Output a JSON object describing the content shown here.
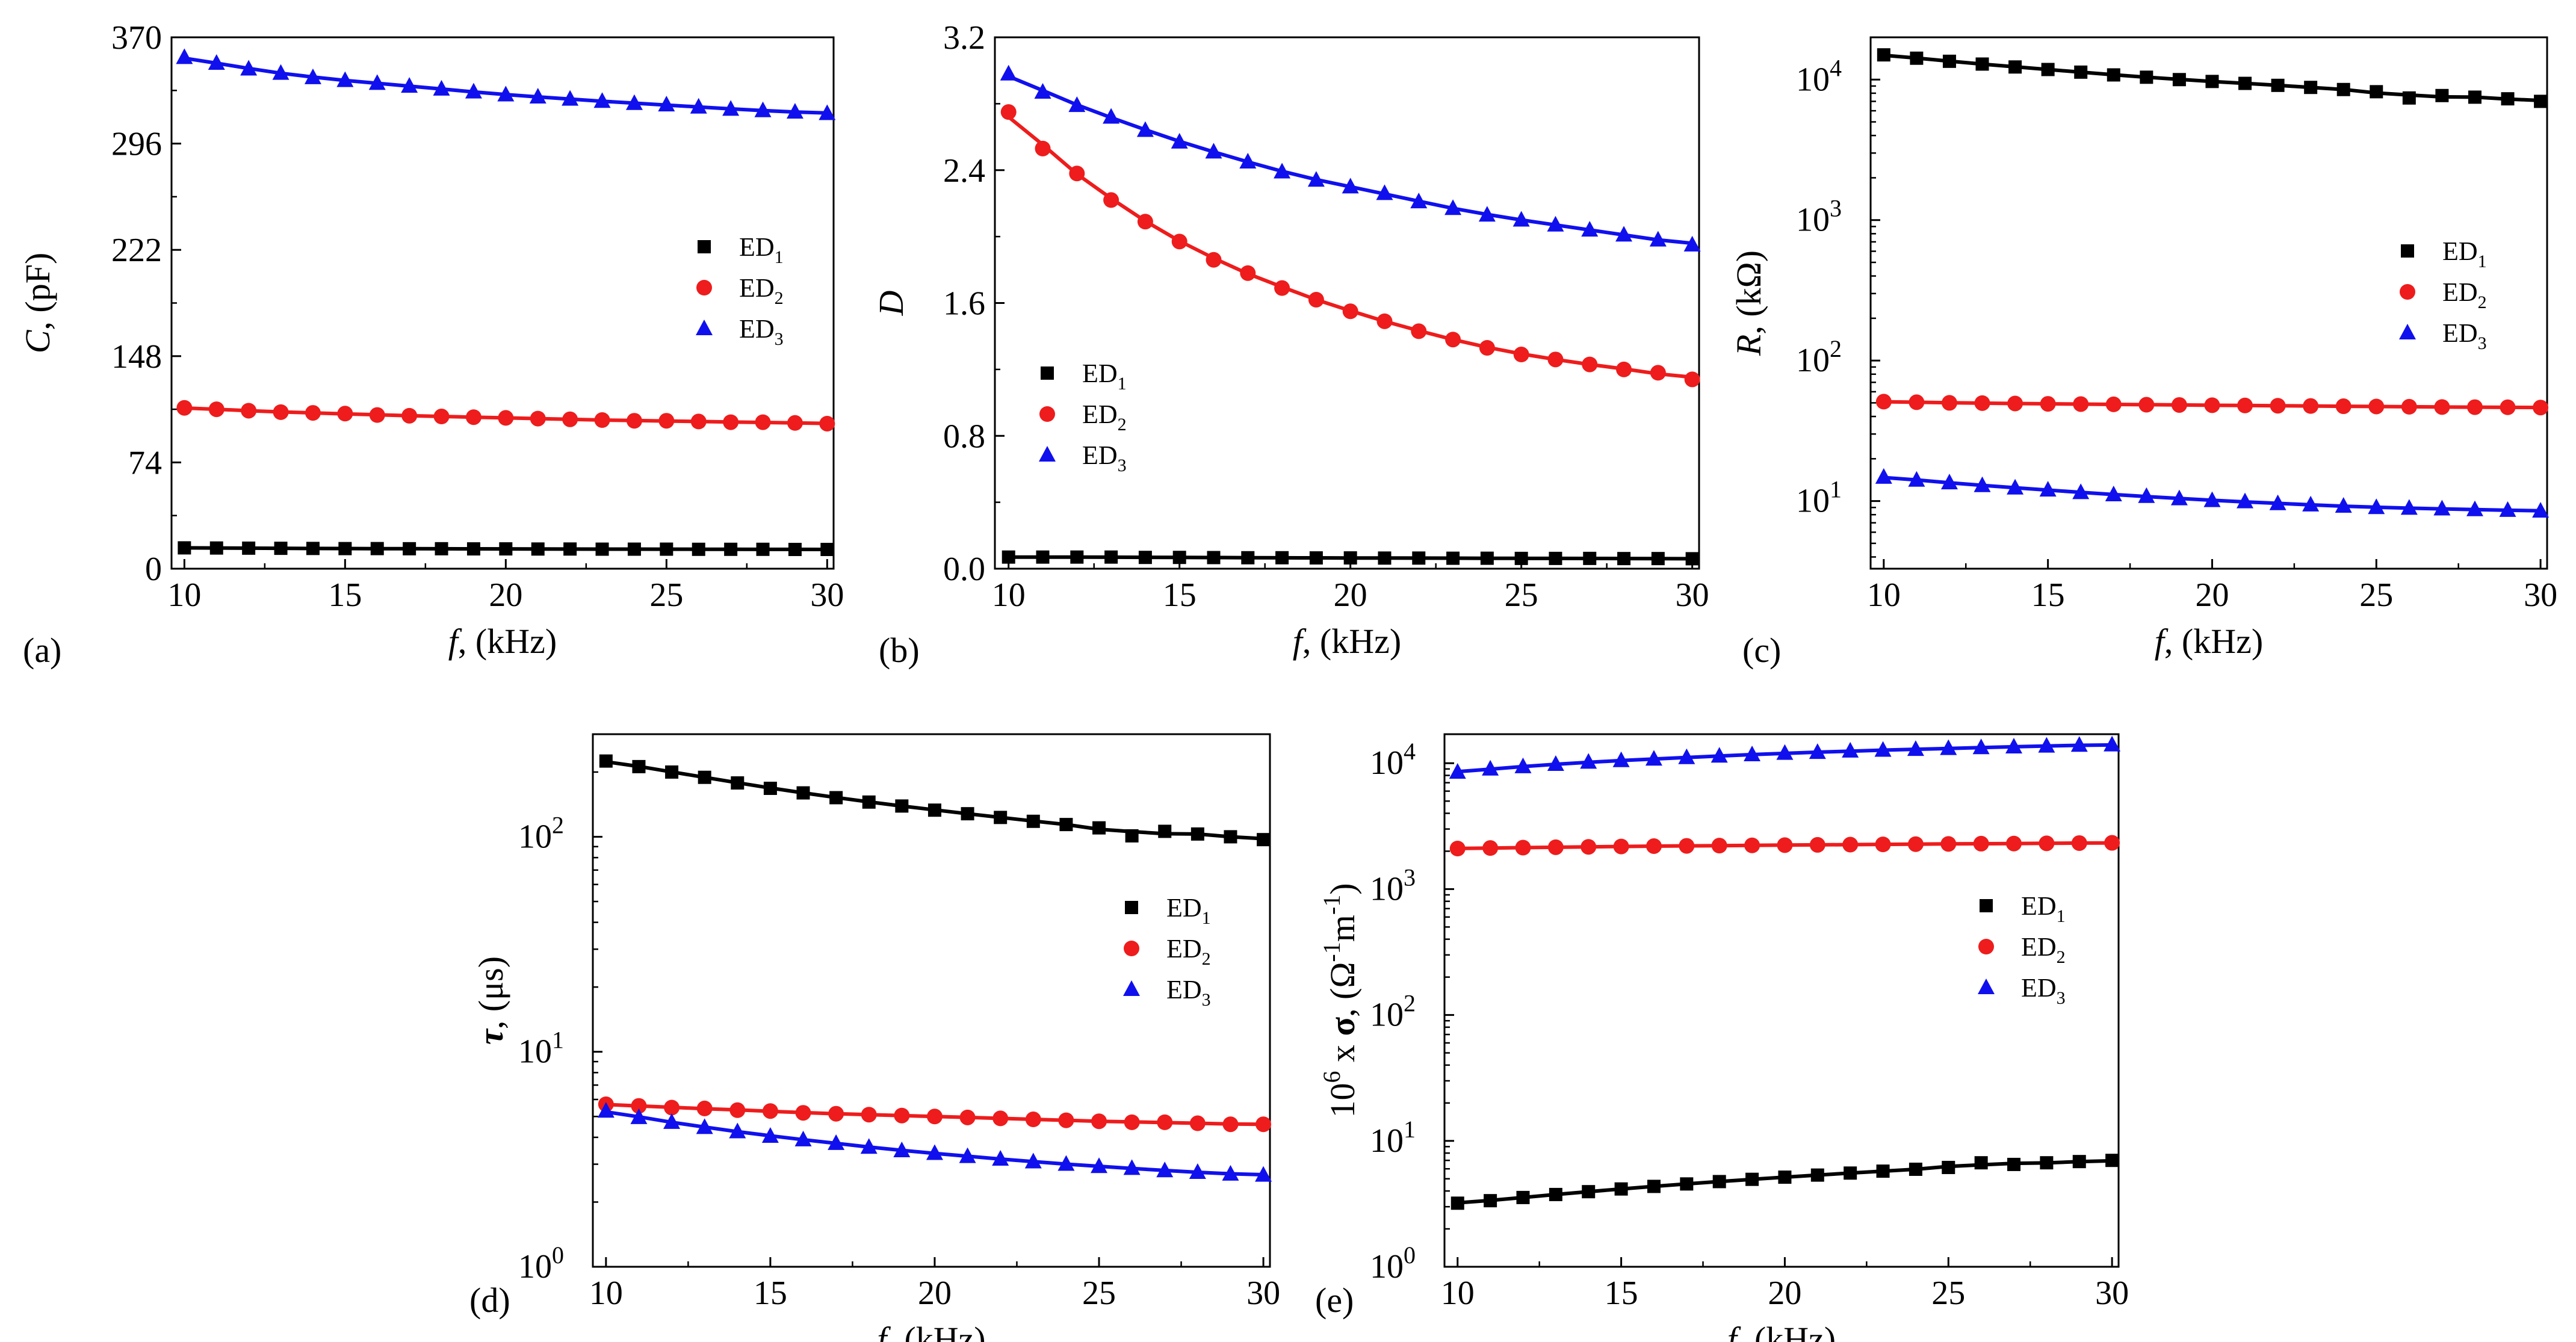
{
  "figure": {
    "colors": {
      "ED1": "#000000",
      "ED2": "#ee1c1c",
      "ED3": "#1010ee"
    },
    "legend": [
      {
        "series": "ED1",
        "base": "ED",
        "sub": "1",
        "marker": "square"
      },
      {
        "series": "ED2",
        "base": "ED",
        "sub": "2",
        "marker": "circle"
      },
      {
        "series": "ED3",
        "base": "ED",
        "sub": "3",
        "marker": "triangle"
      }
    ]
  },
  "chart_data": [
    {
      "id": "a",
      "panel_label": "(a)",
      "type": "line",
      "scale": "linear",
      "xlabel": {
        "symbol": "f",
        "unit": ", (kHz)"
      },
      "ylabel": {
        "symbol": "C",
        "unit": ", (pF)"
      },
      "xlim": [
        9.6,
        30.2
      ],
      "ylim": [
        0,
        370
      ],
      "xticks": [
        "10",
        "15",
        "20",
        "25",
        "30"
      ],
      "yticks": [
        "0",
        "74",
        "148",
        "222",
        "296",
        "370"
      ],
      "x": [
        10,
        11,
        12,
        13,
        14,
        15,
        16,
        17,
        18,
        19,
        20,
        21,
        22,
        23,
        24,
        25,
        26,
        27,
        28,
        29,
        30
      ],
      "series": [
        {
          "name": "ED1",
          "values": [
            14.5,
            14.4,
            14.3,
            14.2,
            14.1,
            14.0,
            14.0,
            13.9,
            13.9,
            13.8,
            13.8,
            13.7,
            13.7,
            13.6,
            13.6,
            13.6,
            13.5,
            13.5,
            13.5,
            13.4,
            13.4
          ]
        },
        {
          "name": "ED2",
          "values": [
            112,
            111,
            110,
            109,
            108.5,
            108,
            107,
            106.5,
            106,
            105.5,
            105,
            104.5,
            104,
            103.5,
            103,
            103,
            102.5,
            102,
            102,
            101.5,
            101
          ]
        },
        {
          "name": "ED3",
          "values": [
            356,
            352,
            348,
            345,
            342,
            340,
            338,
            336,
            334,
            332,
            330,
            328.5,
            327,
            325.5,
            324,
            323,
            321.5,
            320,
            319,
            318,
            317
          ]
        }
      ]
    },
    {
      "id": "b",
      "panel_label": "(b)",
      "type": "line",
      "scale": "linear",
      "xlabel": {
        "symbol": "f",
        "unit": ", (kHz)"
      },
      "ylabel": {
        "symbol": "D",
        "unit": ""
      },
      "xlim": [
        9.6,
        30.2
      ],
      "ylim": [
        0,
        3.2
      ],
      "xticks": [
        "10",
        "15",
        "20",
        "25",
        "30"
      ],
      "yticks": [
        "0.0",
        "0.8",
        "1.6",
        "2.4",
        "3.2"
      ],
      "x": [
        10,
        11,
        12,
        13,
        14,
        15,
        16,
        17,
        18,
        19,
        20,
        21,
        22,
        23,
        24,
        25,
        26,
        27,
        28,
        29,
        30
      ],
      "series": [
        {
          "name": "ED1",
          "values": [
            0.07,
            0.07,
            0.07,
            0.07,
            0.068,
            0.068,
            0.067,
            0.066,
            0.066,
            0.065,
            0.065,
            0.064,
            0.064,
            0.063,
            0.063,
            0.062,
            0.062,
            0.062,
            0.061,
            0.061,
            0.06
          ]
        },
        {
          "name": "ED2",
          "values": [
            2.75,
            2.53,
            2.38,
            2.22,
            2.09,
            1.97,
            1.86,
            1.78,
            1.69,
            1.62,
            1.55,
            1.49,
            1.43,
            1.38,
            1.33,
            1.29,
            1.26,
            1.23,
            1.2,
            1.18,
            1.14
          ]
        },
        {
          "name": "ED3",
          "values": [
            2.98,
            2.87,
            2.79,
            2.72,
            2.64,
            2.57,
            2.51,
            2.45,
            2.39,
            2.34,
            2.3,
            2.26,
            2.21,
            2.17,
            2.13,
            2.1,
            2.07,
            2.04,
            2.01,
            1.98,
            1.95
          ]
        }
      ]
    },
    {
      "id": "c",
      "panel_label": "(c)",
      "type": "line",
      "scale": "log",
      "xlabel": {
        "symbol": "f",
        "unit": ", (kHz)"
      },
      "ylabel": {
        "symbol": "R",
        "unit": ", (kΩ)"
      },
      "xlim": [
        9.6,
        30.2
      ],
      "ylim": [
        3.3,
        20000
      ],
      "xticks": [
        "10",
        "15",
        "20",
        "25",
        "30"
      ],
      "yticks": [
        "10",
        "10",
        "10",
        "10"
      ],
      "yticks_exp": [
        "1",
        "2",
        "3",
        "4"
      ],
      "x": [
        10,
        11,
        12,
        13,
        14,
        15,
        16,
        17,
        18,
        19,
        20,
        21,
        22,
        23,
        24,
        25,
        26,
        27,
        28,
        29,
        30
      ],
      "series": [
        {
          "name": "ED1",
          "values": [
            15000,
            14200,
            13500,
            12900,
            12300,
            11800,
            11300,
            10800,
            10400,
            10000,
            9700,
            9400,
            9100,
            8800,
            8500,
            8200,
            7400,
            7700,
            7500,
            7300,
            7000
          ]
        },
        {
          "name": "ED2",
          "values": [
            51,
            50.5,
            50,
            49.8,
            49.5,
            49.2,
            49,
            48.8,
            48.5,
            48.3,
            48.1,
            47.9,
            47.7,
            47.5,
            47.3,
            47.1,
            46.9,
            46.7,
            46.6,
            46.5,
            46.3
          ]
        },
        {
          "name": "ED3",
          "values": [
            14.8,
            14.1,
            13.5,
            12.9,
            12.4,
            12.0,
            11.5,
            11.1,
            10.8,
            10.4,
            10.1,
            9.9,
            9.6,
            9.4,
            9.2,
            9.0,
            8.9,
            8.8,
            8.7,
            8.6,
            8.5
          ]
        }
      ]
    },
    {
      "id": "d",
      "panel_label": "(d)",
      "type": "line",
      "scale": "log",
      "xlabel": {
        "symbol": "f",
        "unit": ", (kHz)"
      },
      "ylabel": {
        "symbol": "τ",
        "unit": ", (μs)"
      },
      "xlim": [
        9.6,
        30.2
      ],
      "ylim": [
        1,
        300
      ],
      "xticks": [
        "10",
        "15",
        "20",
        "25",
        "30"
      ],
      "yticks": [
        "10",
        "10",
        "10"
      ],
      "yticks_exp": [
        "0",
        "1",
        "2"
      ],
      "x": [
        10,
        11,
        12,
        13,
        14,
        15,
        16,
        17,
        18,
        19,
        20,
        21,
        22,
        23,
        24,
        25,
        26,
        27,
        28,
        29,
        30
      ],
      "series": [
        {
          "name": "ED1",
          "values": [
            225,
            212,
            200,
            189,
            178,
            168,
            160,
            152,
            145,
            139,
            133,
            128,
            123,
            118,
            114,
            110,
            101,
            106,
            103,
            100,
            97
          ]
        },
        {
          "name": "ED2",
          "values": [
            5.7,
            5.6,
            5.5,
            5.45,
            5.35,
            5.3,
            5.2,
            5.15,
            5.1,
            5.05,
            5.0,
            4.95,
            4.9,
            4.85,
            4.8,
            4.75,
            4.7,
            4.7,
            4.65,
            4.6,
            4.6
          ]
        },
        {
          "name": "ED3",
          "values": [
            5.3,
            4.95,
            4.7,
            4.45,
            4.25,
            4.05,
            3.9,
            3.75,
            3.6,
            3.47,
            3.37,
            3.26,
            3.17,
            3.08,
            3.0,
            2.93,
            2.87,
            2.8,
            2.75,
            2.7,
            2.67
          ]
        }
      ]
    },
    {
      "id": "e",
      "panel_label": "(e)",
      "type": "line",
      "scale": "log",
      "xlabel": {
        "symbol": "f",
        "unit": ", (kHz)"
      },
      "ylabel": {
        "prefix": "10",
        "prefix_exp": "6",
        "rest": " x ",
        "symbol": "σ",
        "unit_pre": ", (Ω",
        "unit_exp1": "-1",
        "unit_mid": "m",
        "unit_exp2": "-1",
        "unit_post": ")"
      },
      "xlim": [
        9.6,
        30.2
      ],
      "ylim": [
        1,
        17000
      ],
      "xticks": [
        "10",
        "15",
        "20",
        "25",
        "30"
      ],
      "yticks": [
        "10",
        "10",
        "10",
        "10",
        "10"
      ],
      "yticks_exp": [
        "0",
        "1",
        "2",
        "3",
        "4"
      ],
      "x": [
        10,
        11,
        12,
        13,
        14,
        15,
        16,
        17,
        18,
        19,
        20,
        21,
        22,
        23,
        24,
        25,
        26,
        27,
        28,
        29,
        30
      ],
      "series": [
        {
          "name": "ED1",
          "values": [
            3.2,
            3.35,
            3.55,
            3.75,
            3.95,
            4.15,
            4.35,
            4.55,
            4.75,
            4.95,
            5.15,
            5.35,
            5.55,
            5.75,
            5.95,
            6.15,
            6.7,
            6.5,
            6.7,
            6.85,
            7.0
          ]
        },
        {
          "name": "ED2",
          "values": [
            2100,
            2120,
            2135,
            2150,
            2165,
            2180,
            2195,
            2205,
            2215,
            2225,
            2235,
            2245,
            2255,
            2265,
            2275,
            2285,
            2295,
            2300,
            2310,
            2320,
            2330
          ]
        },
        {
          "name": "ED3",
          "values": [
            8500,
            9000,
            9400,
            9800,
            10200,
            10500,
            10800,
            11100,
            11400,
            11700,
            12000,
            12200,
            12500,
            12700,
            12900,
            13100,
            13300,
            13500,
            13700,
            13900,
            14000
          ]
        }
      ]
    }
  ]
}
